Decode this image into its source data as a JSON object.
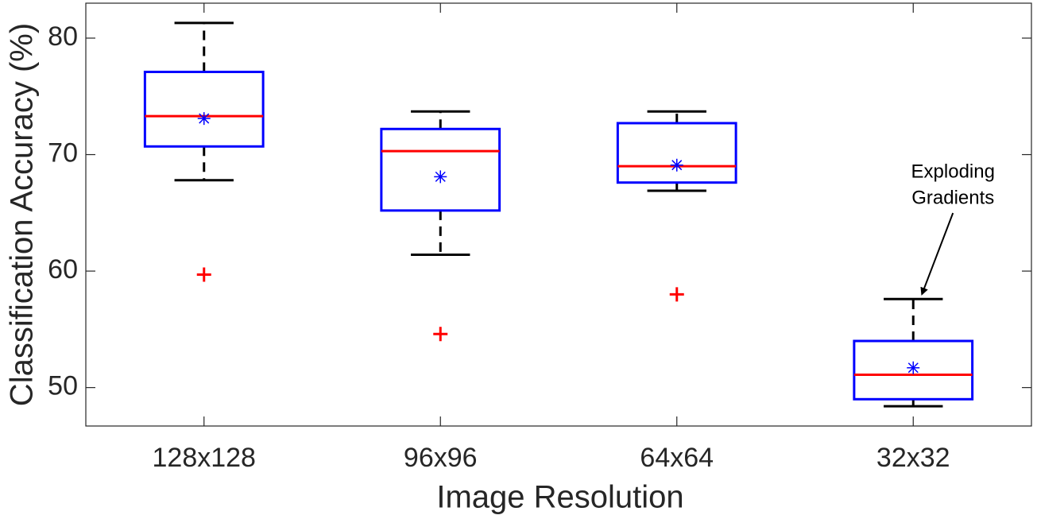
{
  "chart_data": {
    "type": "box",
    "x_label": "Image Resolution",
    "y_label": "Classification Accuracy (%)",
    "categories": [
      "128x128",
      "96x96",
      "64x64",
      "32x32"
    ],
    "whisker_high": [
      81.3,
      73.7,
      73.7,
      57.6
    ],
    "q3": [
      77.1,
      72.2,
      72.7,
      54.0
    ],
    "median": [
      73.3,
      70.3,
      69.0,
      51.1
    ],
    "q1": [
      70.7,
      65.2,
      67.6,
      49.0
    ],
    "whisker_low": [
      67.8,
      61.4,
      66.9,
      48.4
    ],
    "mean": [
      73.1,
      68.1,
      69.1,
      51.7
    ],
    "outliers": [
      [
        59.7
      ],
      [
        54.6
      ],
      [
        58.0
      ],
      []
    ],
    "box_color": "#0000ff",
    "median_color": "#ff0000",
    "whisker_color": "#000000",
    "mean_color": "#0000ff",
    "outlier_color": "#ff0000",
    "ylim": [
      46.7,
      83.0
    ],
    "yticks": [
      50,
      60,
      70,
      80
    ],
    "annotation": {
      "lines": [
        "Exploding",
        "Gradients"
      ],
      "category": 3
    }
  }
}
